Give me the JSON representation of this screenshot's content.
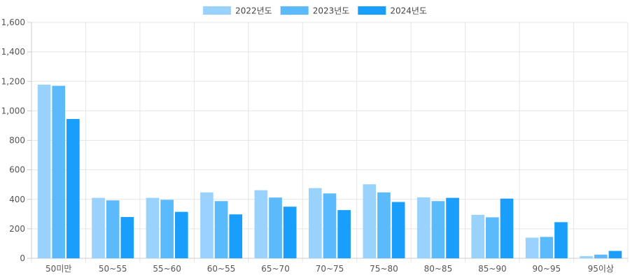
{
  "chart_data": {
    "type": "bar",
    "categories": [
      "50미만",
      "50~55",
      "55~60",
      "60~55",
      "65~70",
      "70~75",
      "75~80",
      "80~85",
      "85~90",
      "90~95",
      "95이상"
    ],
    "series": [
      {
        "name": "2022년도",
        "color": "#99d3fd",
        "values": [
          1178,
          410,
          410,
          447,
          462,
          476,
          502,
          413,
          295,
          140,
          15
        ]
      },
      {
        "name": "2023년도",
        "color": "#5bbafc",
        "values": [
          1170,
          393,
          397,
          388,
          412,
          440,
          447,
          388,
          278,
          145,
          25
        ]
      },
      {
        "name": "2024년도",
        "color": "#1a9efc",
        "values": [
          945,
          280,
          315,
          298,
          350,
          327,
          382,
          410,
          405,
          245,
          50
        ]
      }
    ],
    "y_ticks": [
      "0",
      "200",
      "400",
      "600",
      "800",
      "1,000",
      "1,200",
      "1,400",
      "1,600"
    ],
    "ylim": [
      0,
      1600
    ],
    "grid": true,
    "legend_position": "top-center"
  }
}
